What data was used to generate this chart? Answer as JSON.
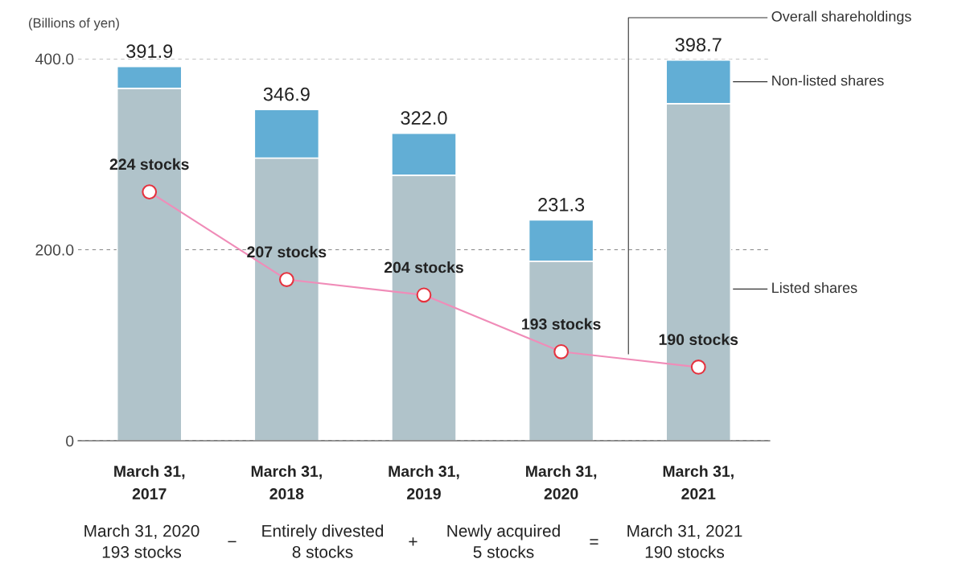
{
  "chart_data": {
    "type": "bar",
    "stacked": true,
    "ylabel": "(Billions of yen)",
    "categories": [
      "March 31,\n2017",
      "March 31,\n2018",
      "March 31,\n2019",
      "March 31,\n2020",
      "March 31,\n2021"
    ],
    "series": [
      {
        "name": "Listed shares",
        "color": "#b0c3ca",
        "values": [
          369,
          296,
          278,
          188,
          353
        ]
      },
      {
        "name": "Non-listed shares",
        "color": "#62aed5",
        "values": [
          22.9,
          50.9,
          44.0,
          43.3,
          45.7
        ]
      },
      {
        "type": "line",
        "axis": "y2",
        "color": "#f08cb8",
        "marker": "circle",
        "values": [
          224,
          207,
          204,
          193,
          190
        ],
        "value_labels": [
          "224 stocks",
          "207 stocks",
          "204 stocks",
          "193 stocks",
          "190 stocks"
        ]
      }
    ],
    "totals": [
      "391.9",
      "346.9",
      "322.0",
      "231.3",
      "398.7"
    ],
    "ylim": [
      0,
      400
    ],
    "yticks": [
      0,
      {
        "value": 200,
        "label": "200.0"
      },
      {
        "value": 400,
        "label": "400.0"
      }
    ],
    "grid": "y",
    "annotations": [
      "Overall shareholdings",
      "March 31, 2020\n193 stocks",
      "−",
      "Entirely divested\n8 stocks",
      "+",
      "Newly acquired\n5 stocks",
      "=",
      "March 31, 2021\n190 stocks"
    ]
  }
}
